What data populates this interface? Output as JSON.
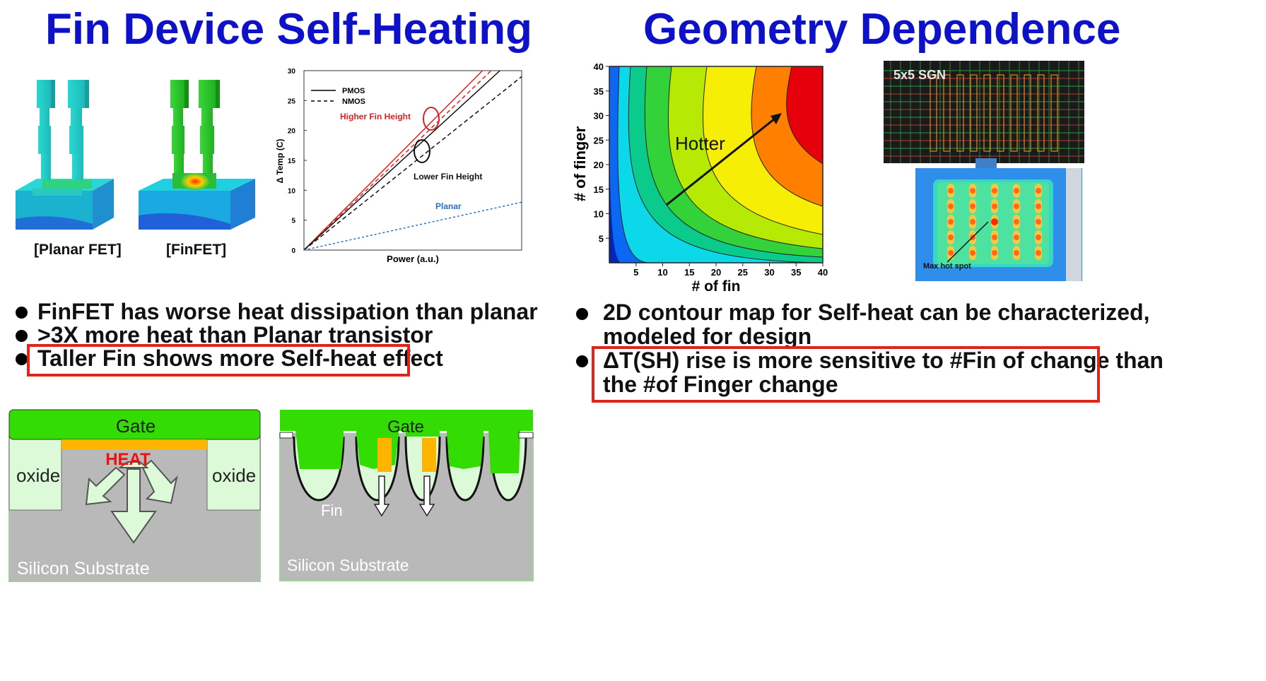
{
  "left": {
    "title": "Fin Device Self-Heating",
    "captions": {
      "planar": "[Planar FET]",
      "finfet": "[FinFET]"
    },
    "bullets": [
      "FinFET has worse heat dissipation than planar",
      ">3X more heat than Planar transistor",
      "Taller Fin shows more Self-heat effect"
    ],
    "diagram_planar": {
      "gate": "Gate",
      "heat": "HEAT",
      "oxide_left": "oxide",
      "oxide_right": "oxide",
      "substrate": "Silicon Substrate"
    },
    "diagram_fin": {
      "gate": "Gate",
      "fin": "Fin",
      "substrate": "Silicon Substrate"
    }
  },
  "right": {
    "title": "Geometry Dependence",
    "bullets": [
      "2D contour map for Self-heat can be characterized,",
      "modeled for design",
      "ΔT(SH) rise is more sensitive to #Fin of change than",
      "the #of Finger change"
    ],
    "contour": {
      "label": "Hotter",
      "xlabel": "# of fin",
      "ylabel": "# of finger"
    },
    "sgn_label": "5x5 SGN",
    "hotspot_label": "Max hot spot"
  },
  "chart_data": {
    "type": "line",
    "xlabel": "Power (a.u.)",
    "ylabel": "Δ Temp (C)",
    "ylim": [
      0,
      30
    ],
    "yticks": [
      0,
      5,
      10,
      15,
      20,
      25,
      30
    ],
    "xlim": [
      0,
      1
    ],
    "legend": [
      "PMOS",
      "NMOS"
    ],
    "legend_position": "top-left",
    "series": [
      {
        "group": "Higher Fin Height",
        "style": "solid",
        "color": "#e02020",
        "x": [
          0,
          0.82
        ],
        "y": [
          0,
          30
        ]
      },
      {
        "group": "Higher Fin Height",
        "style": "dashed",
        "color": "#e02020",
        "x": [
          0,
          0.86
        ],
        "y": [
          0,
          30
        ]
      },
      {
        "group": "Lower Fin Height",
        "style": "solid",
        "color": "#111111",
        "x": [
          0,
          0.9
        ],
        "y": [
          0,
          30
        ]
      },
      {
        "group": "Lower Fin Height",
        "style": "dashed",
        "color": "#111111",
        "x": [
          0,
          1.0
        ],
        "y": [
          0,
          29
        ]
      },
      {
        "group": "Planar",
        "style": "dotted",
        "color": "#2a6fc9",
        "x": [
          0,
          1.0
        ],
        "y": [
          0,
          8
        ]
      }
    ],
    "annotations": [
      "Higher Fin Height",
      "Lower Fin Height",
      "Planar"
    ]
  }
}
